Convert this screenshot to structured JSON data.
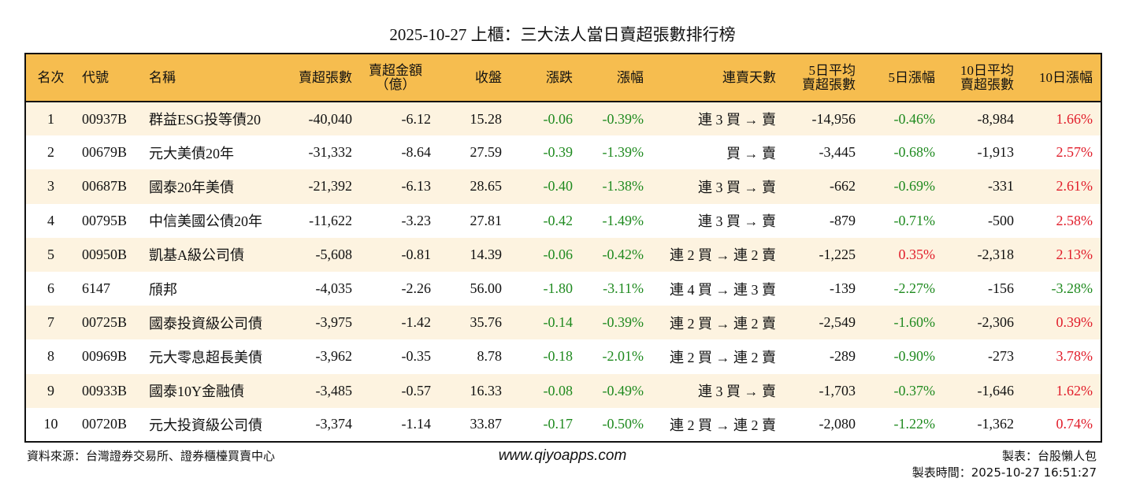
{
  "title": "2025-10-27 上櫃：三大法人當日賣超張數排行榜",
  "colors": {
    "header_bg": "#f6bd4f",
    "row_alt_bg": "#fdf3e0",
    "negative": "#1f8a1f",
    "positive": "#e11d2a"
  },
  "columns": [
    "名次",
    "代號",
    "名稱",
    "賣超張數",
    "賣超金額\n（億）",
    "收盤",
    "漲跌",
    "漲幅",
    "連賣天數",
    "5日平均\n賣超張數",
    "5日漲幅",
    "10日平均\n賣超張數",
    "10日漲幅"
  ],
  "rows": [
    [
      "1",
      "00937B",
      "群益ESG投等債20",
      "-40,040",
      "-6.12",
      "15.28",
      "-0.06",
      "-0.39%",
      "連 3 買 → 賣",
      "-14,956",
      "-0.46%",
      "-8,984",
      "1.66%"
    ],
    [
      "2",
      "00679B",
      "元大美債20年",
      "-31,332",
      "-8.64",
      "27.59",
      "-0.39",
      "-1.39%",
      "買 → 賣",
      "-3,445",
      "-0.68%",
      "-1,913",
      "2.57%"
    ],
    [
      "3",
      "00687B",
      "國泰20年美債",
      "-21,392",
      "-6.13",
      "28.65",
      "-0.40",
      "-1.38%",
      "連 3 買 → 賣",
      "-662",
      "-0.69%",
      "-331",
      "2.61%"
    ],
    [
      "4",
      "00795B",
      "中信美國公債20年",
      "-11,622",
      "-3.23",
      "27.81",
      "-0.42",
      "-1.49%",
      "連 3 買 → 賣",
      "-879",
      "-0.71%",
      "-500",
      "2.58%"
    ],
    [
      "5",
      "00950B",
      "凱基A級公司債",
      "-5,608",
      "-0.81",
      "14.39",
      "-0.06",
      "-0.42%",
      "連 2 買 → 連 2 賣",
      "-1,225",
      "0.35%",
      "-2,318",
      "2.13%"
    ],
    [
      "6",
      "6147",
      "頎邦",
      "-4,035",
      "-2.26",
      "56.00",
      "-1.80",
      "-3.11%",
      "連 4 買 → 連 3 賣",
      "-139",
      "-2.27%",
      "-156",
      "-3.28%"
    ],
    [
      "7",
      "00725B",
      "國泰投資級公司債",
      "-3,975",
      "-1.42",
      "35.76",
      "-0.14",
      "-0.39%",
      "連 2 買 → 連 2 賣",
      "-2,549",
      "-1.60%",
      "-2,306",
      "0.39%"
    ],
    [
      "8",
      "00969B",
      "元大零息超長美債",
      "-3,962",
      "-0.35",
      "8.78",
      "-0.18",
      "-2.01%",
      "連 2 買 → 連 2 賣",
      "-289",
      "-0.90%",
      "-273",
      "3.78%"
    ],
    [
      "9",
      "00933B",
      "國泰10Y金融債",
      "-3,485",
      "-0.57",
      "16.33",
      "-0.08",
      "-0.49%",
      "連 3 買 → 賣",
      "-1,703",
      "-0.37%",
      "-1,646",
      "1.62%"
    ],
    [
      "10",
      "00720B",
      "元大投資級公司債",
      "-3,374",
      "-1.14",
      "33.87",
      "-0.17",
      "-0.50%",
      "連 2 買 → 連 2 賣",
      "-2,080",
      "-1.22%",
      "-1,362",
      "0.74%"
    ]
  ],
  "footer": {
    "source": "資料來源：台灣證券交易所、證券櫃檯買賣中心",
    "url": "www.qiyoapps.com",
    "maker": "製表：台股懶人包",
    "time": "製表時間：2025-10-27 16:51:27"
  }
}
